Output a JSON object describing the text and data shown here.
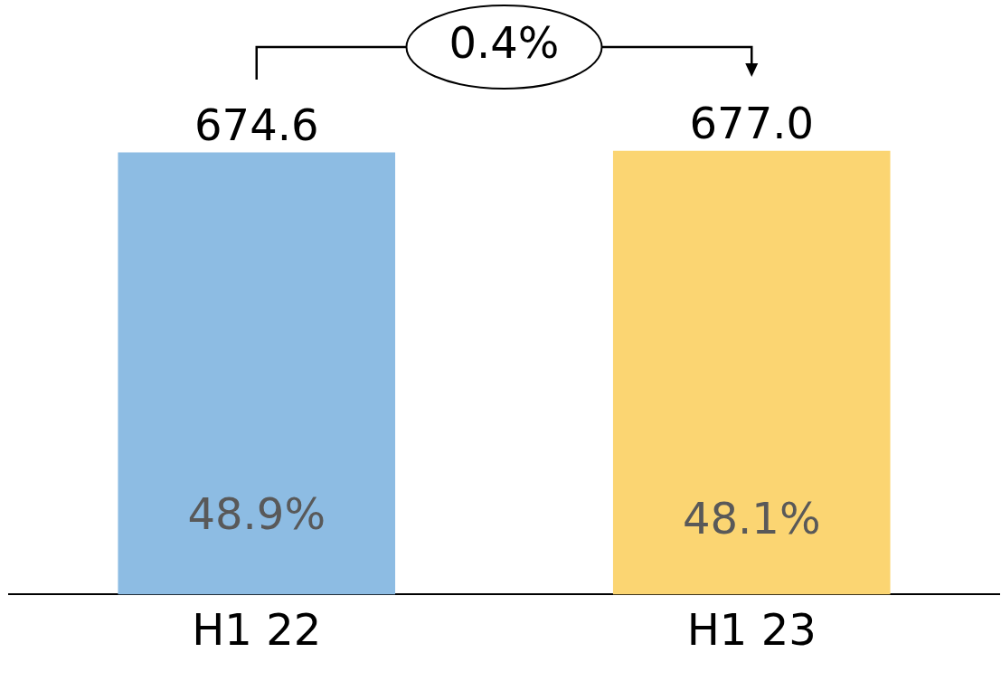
{
  "chart_data": {
    "type": "bar",
    "categories": [
      "H1 22",
      "H1 23"
    ],
    "values": [
      674.6,
      677.0
    ],
    "colors": [
      "#8dbce3",
      "#fbd572"
    ],
    "value_labels": [
      "674.6",
      "677.0"
    ],
    "tick_labels": "x",
    "grid": false,
    "legend": false,
    "annotations": [
      "48.9%",
      "48.1%",
      "0.4%"
    ]
  }
}
